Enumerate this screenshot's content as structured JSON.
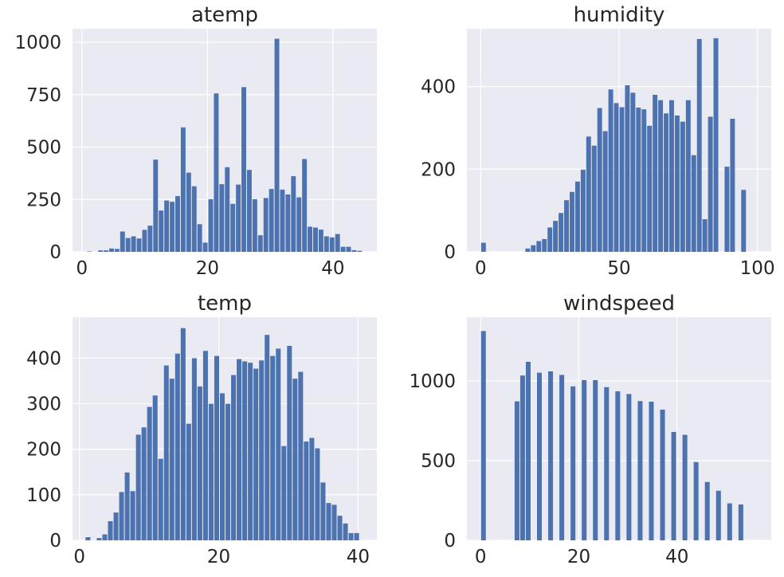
{
  "chart_data": [
    {
      "type": "bar",
      "title": "atemp",
      "xlim": [
        -1.5,
        47.0
      ],
      "ylim": [
        0,
        1065
      ],
      "xticks": [
        0,
        20,
        40
      ],
      "yticks": [
        0,
        250,
        500,
        750,
        1000
      ],
      "grid": true,
      "bin_start": 0.76,
      "bin_width": 0.8786,
      "values": [
        2,
        0,
        7,
        7,
        16,
        14,
        97,
        66,
        74,
        64,
        105,
        125,
        440,
        197,
        245,
        239,
        266,
        594,
        378,
        313,
        132,
        44,
        251,
        756,
        323,
        404,
        229,
        321,
        786,
        391,
        251,
        79,
        257,
        300,
        1017,
        297,
        274,
        361,
        260,
        443,
        120,
        116,
        106,
        74,
        69,
        85,
        24,
        24,
        8,
        5
      ]
    },
    {
      "type": "bar",
      "title": "humidity",
      "xlim": [
        -5,
        105
      ],
      "ylim": [
        0,
        540
      ],
      "xticks": [
        0,
        50,
        100
      ],
      "yticks": [
        0,
        200,
        400
      ],
      "grid": true,
      "bin_start": 0,
      "bin_width": 2,
      "values": [
        22,
        0,
        0,
        0,
        0,
        0,
        0,
        0,
        8,
        16,
        26,
        31,
        59,
        75,
        94,
        125,
        145,
        170,
        199,
        279,
        257,
        348,
        292,
        393,
        360,
        350,
        403,
        385,
        349,
        345,
        305,
        380,
        367,
        335,
        367,
        330,
        315,
        367,
        234,
        515,
        79,
        327,
        517,
        0,
        206,
        322,
        0,
        150,
        0,
        0
      ]
    },
    {
      "type": "bar",
      "title": "temp",
      "xlim": [
        -1.0,
        42.7
      ],
      "ylim": [
        0,
        490
      ],
      "xticks": [
        0,
        20,
        40
      ],
      "yticks": [
        0,
        100,
        200,
        300,
        400
      ],
      "grid": true,
      "bin_start": 0.82,
      "bin_width": 0.8036,
      "values": [
        7,
        0,
        5,
        13,
        42,
        61,
        106,
        149,
        108,
        232,
        248,
        293,
        318,
        179,
        384,
        355,
        410,
        466,
        256,
        400,
        338,
        416,
        300,
        405,
        323,
        300,
        363,
        398,
        393,
        390,
        377,
        395,
        451,
        405,
        421,
        207,
        427,
        355,
        370,
        217,
        225,
        202,
        127,
        82,
        78,
        54,
        37,
        16,
        16,
        0
      ]
    },
    {
      "type": "bar",
      "title": "windspeed",
      "xlim": [
        -2.8,
        59.2
      ],
      "ylim": [
        0,
        1400
      ],
      "xticks": [
        0,
        20,
        40
      ],
      "yticks": [
        0,
        500,
        1000
      ],
      "grid": true,
      "bin_start": 0,
      "bin_width": 1.14,
      "values": [
        1313,
        0,
        0,
        0,
        0,
        0,
        872,
        1034,
        1120,
        0,
        1052,
        0,
        1060,
        0,
        1038,
        0,
        966,
        0,
        1005,
        0,
        1005,
        0,
        961,
        0,
        935,
        0,
        918,
        0,
        874,
        0,
        870,
        0,
        820,
        0,
        680,
        0,
        662,
        0,
        491,
        0,
        366,
        0,
        311,
        0,
        232,
        0,
        225,
        0,
        0,
        0
      ]
    }
  ]
}
